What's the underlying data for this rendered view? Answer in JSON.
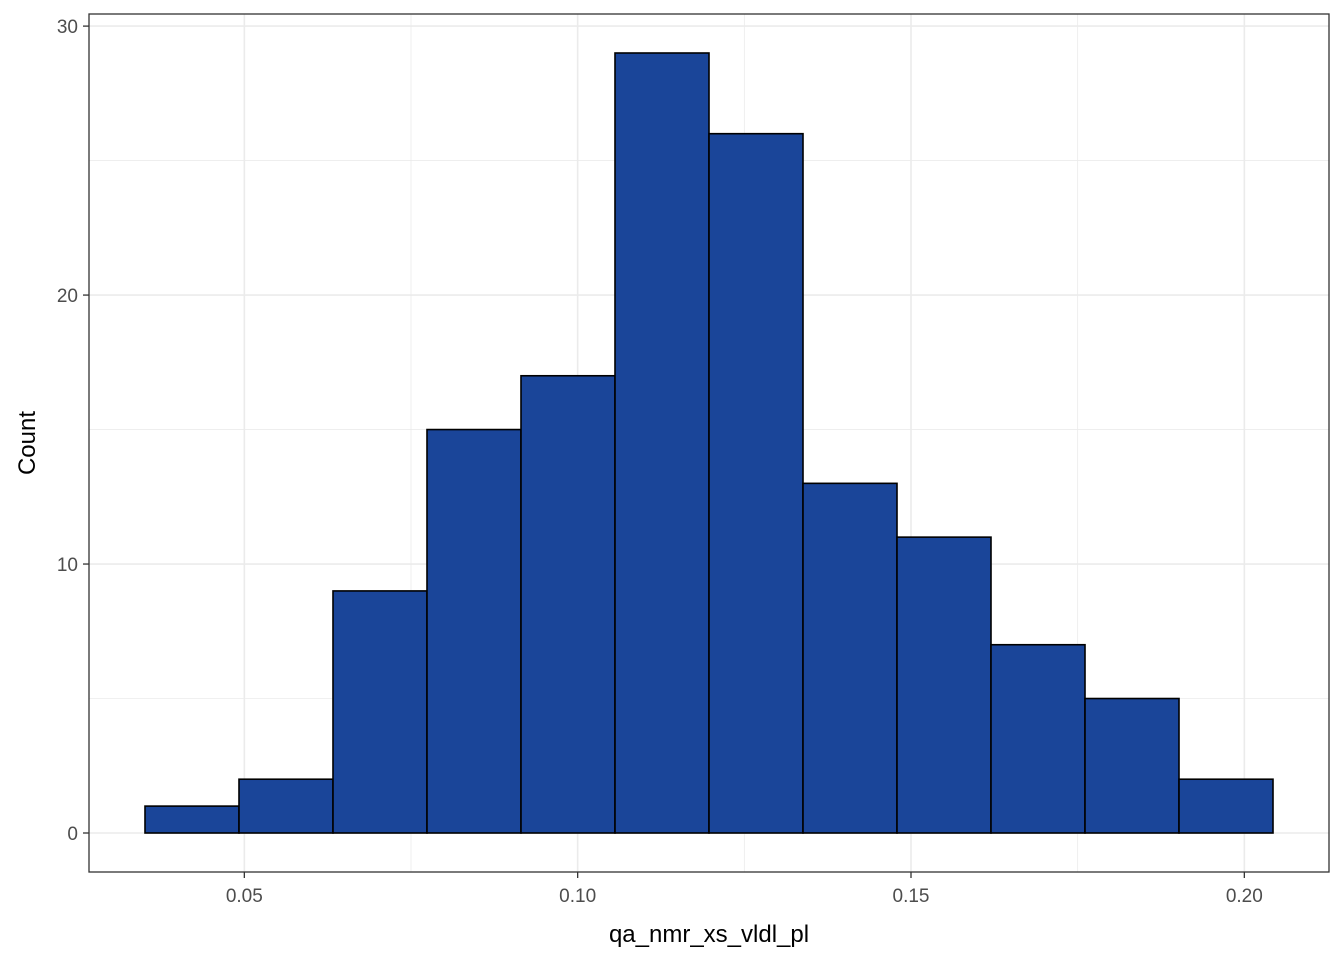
{
  "chart_data": {
    "type": "bar",
    "subtype": "histogram",
    "title": "",
    "xlabel": "qa_nmr_xs_vldl_pl",
    "ylabel": "Count",
    "bins": [
      {
        "x0": 0.0351,
        "x1": 0.0492,
        "count": 1
      },
      {
        "x0": 0.0492,
        "x1": 0.0633,
        "count": 2
      },
      {
        "x0": 0.0633,
        "x1": 0.0774,
        "count": 9
      },
      {
        "x0": 0.0774,
        "x1": 0.0915,
        "count": 15
      },
      {
        "x0": 0.0915,
        "x1": 0.1056,
        "count": 17
      },
      {
        "x0": 0.1056,
        "x1": 0.1197,
        "count": 29
      },
      {
        "x0": 0.1197,
        "x1": 0.1338,
        "count": 26
      },
      {
        "x0": 0.1338,
        "x1": 0.1479,
        "count": 13
      },
      {
        "x0": 0.1479,
        "x1": 0.162,
        "count": 11
      },
      {
        "x0": 0.162,
        "x1": 0.1761,
        "count": 7
      },
      {
        "x0": 0.1761,
        "x1": 0.1902,
        "count": 5
      },
      {
        "x0": 0.1902,
        "x1": 0.2043,
        "count": 2
      }
    ],
    "xlim": [
      0.0267,
      0.2127
    ],
    "ylim": [
      -1.45,
      30.45
    ],
    "x_ticks": [
      0.05,
      0.1,
      0.15,
      0.2
    ],
    "x_tick_labels": [
      "0.05",
      "0.10",
      "0.15",
      "0.20"
    ],
    "y_ticks": [
      0,
      10,
      20,
      30
    ],
    "y_tick_labels": [
      "0",
      "10",
      "20",
      "30"
    ],
    "bar_fill": "#1a4599",
    "bar_outline": "#000000",
    "grid": true,
    "grid_color": "#ebebeb",
    "legend": "none"
  }
}
